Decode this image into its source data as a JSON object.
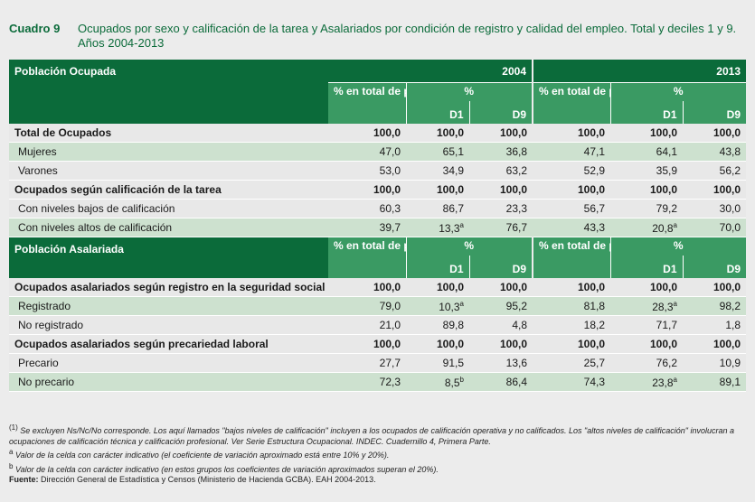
{
  "header": {
    "number": "Cuadro 9",
    "title": "Ocupados por sexo y calificación de la tarea y Asalariados por condición de registro y calidad del empleo. Total y deciles 1 y 9. Años 2004-2013"
  },
  "table": {
    "years": [
      "2004",
      "2013"
    ],
    "pct_symbol": "%",
    "d1": "D1",
    "d9": "D9",
    "section1": {
      "label": "Población Ocupada",
      "pct_total": "% en total de población ocupada"
    },
    "section2": {
      "label": "Población Asalariada",
      "pct_total": "% en total de población asalariada"
    },
    "rows1": [
      {
        "label": "Total de Ocupados",
        "v": [
          "100,0",
          "100,0",
          "100,0",
          "100,0",
          "100,0",
          "100,0"
        ],
        "sup": [
          "",
          "",
          "",
          "",
          "",
          ""
        ]
      },
      {
        "label": "Mujeres",
        "v": [
          "47,0",
          "65,1",
          "36,8",
          "47,1",
          "64,1",
          "43,8"
        ],
        "sup": [
          "",
          "",
          "",
          "",
          "",
          ""
        ]
      },
      {
        "label": "Varones",
        "v": [
          "53,0",
          "34,9",
          "63,2",
          "52,9",
          "35,9",
          "56,2"
        ],
        "sup": [
          "",
          "",
          "",
          "",
          "",
          ""
        ]
      },
      {
        "label": "Ocupados según calificación de la tarea",
        "v": [
          "100,0",
          "100,0",
          "100,0",
          "100,0",
          "100,0",
          "100,0"
        ],
        "sup": [
          "",
          "",
          "",
          "",
          "",
          ""
        ]
      },
      {
        "label": "Con niveles bajos de calificación",
        "v": [
          "60,3",
          "86,7",
          "23,3",
          "56,7",
          "79,2",
          "30,0"
        ],
        "sup": [
          "",
          "",
          "",
          "",
          "",
          ""
        ]
      },
      {
        "label": "Con niveles altos de calificación",
        "v": [
          "39,7",
          "13,3",
          "76,7",
          "43,3",
          "20,8",
          "70,0"
        ],
        "sup": [
          "",
          "a",
          "",
          "",
          "a",
          ""
        ]
      }
    ],
    "rows2": [
      {
        "label": "Ocupados asalariados según registro en la seguridad social (1)",
        "v": [
          "100,0",
          "100,0",
          "100,0",
          "100,0",
          "100,0",
          "100,0"
        ],
        "sup": [
          "",
          "",
          "",
          "",
          "",
          ""
        ]
      },
      {
        "label": "Registrado",
        "v": [
          "79,0",
          "10,3",
          "95,2",
          "81,8",
          "28,3",
          "98,2"
        ],
        "sup": [
          "",
          "a",
          "",
          "",
          "a",
          ""
        ]
      },
      {
        "label": "No registrado",
        "v": [
          "21,0",
          "89,8",
          "4,8",
          "18,2",
          "71,7",
          "1,8"
        ],
        "sup": [
          "",
          "",
          "",
          "",
          "",
          ""
        ]
      },
      {
        "label": "Ocupados asalariados según precariedad laboral",
        "v": [
          "100,0",
          "100,0",
          "100,0",
          "100,0",
          "100,0",
          "100,0"
        ],
        "sup": [
          "",
          "",
          "",
          "",
          "",
          ""
        ]
      },
      {
        "label": "Precario",
        "v": [
          "27,7",
          "91,5",
          "13,6",
          "25,7",
          "76,2",
          "10,9"
        ],
        "sup": [
          "",
          "",
          "",
          "",
          "",
          ""
        ]
      },
      {
        "label": "No precario",
        "v": [
          "72,3",
          "8,5",
          "86,4",
          "74,3",
          "23,8",
          "89,1"
        ],
        "sup": [
          "",
          "b",
          "",
          "",
          "a",
          ""
        ]
      }
    ]
  },
  "notes": {
    "n1_mark": "(1)",
    "n1": "Se excluyen Ns/Nc/No corresponde. Los aquí llamados \"bajos niveles de calificación\" incluyen a los ocupados de calificación operativa y no calificados. Los \"altos niveles de calificación\" involucran a ocupaciones de calificación técnica y calificación profesional. Ver Serie Estructura Ocupacional. INDEC. Cuadernillo 4, Primera Parte.",
    "na_mark": "a",
    "na": "Valor de la celda con carácter indicativo (el coeficiente de variación aproximado está entre 10% y 20%).",
    "nb_mark": "b",
    "nb": "Valor de la celda con carácter indicativo (en estos grupos los coeficientes de variación aproximados superan el 20%).",
    "source_label": "Fuente:",
    "source": "Dirección General de Estadística y Censos (Ministerio de Hacienda GCBA). EAH 2004-2013."
  }
}
